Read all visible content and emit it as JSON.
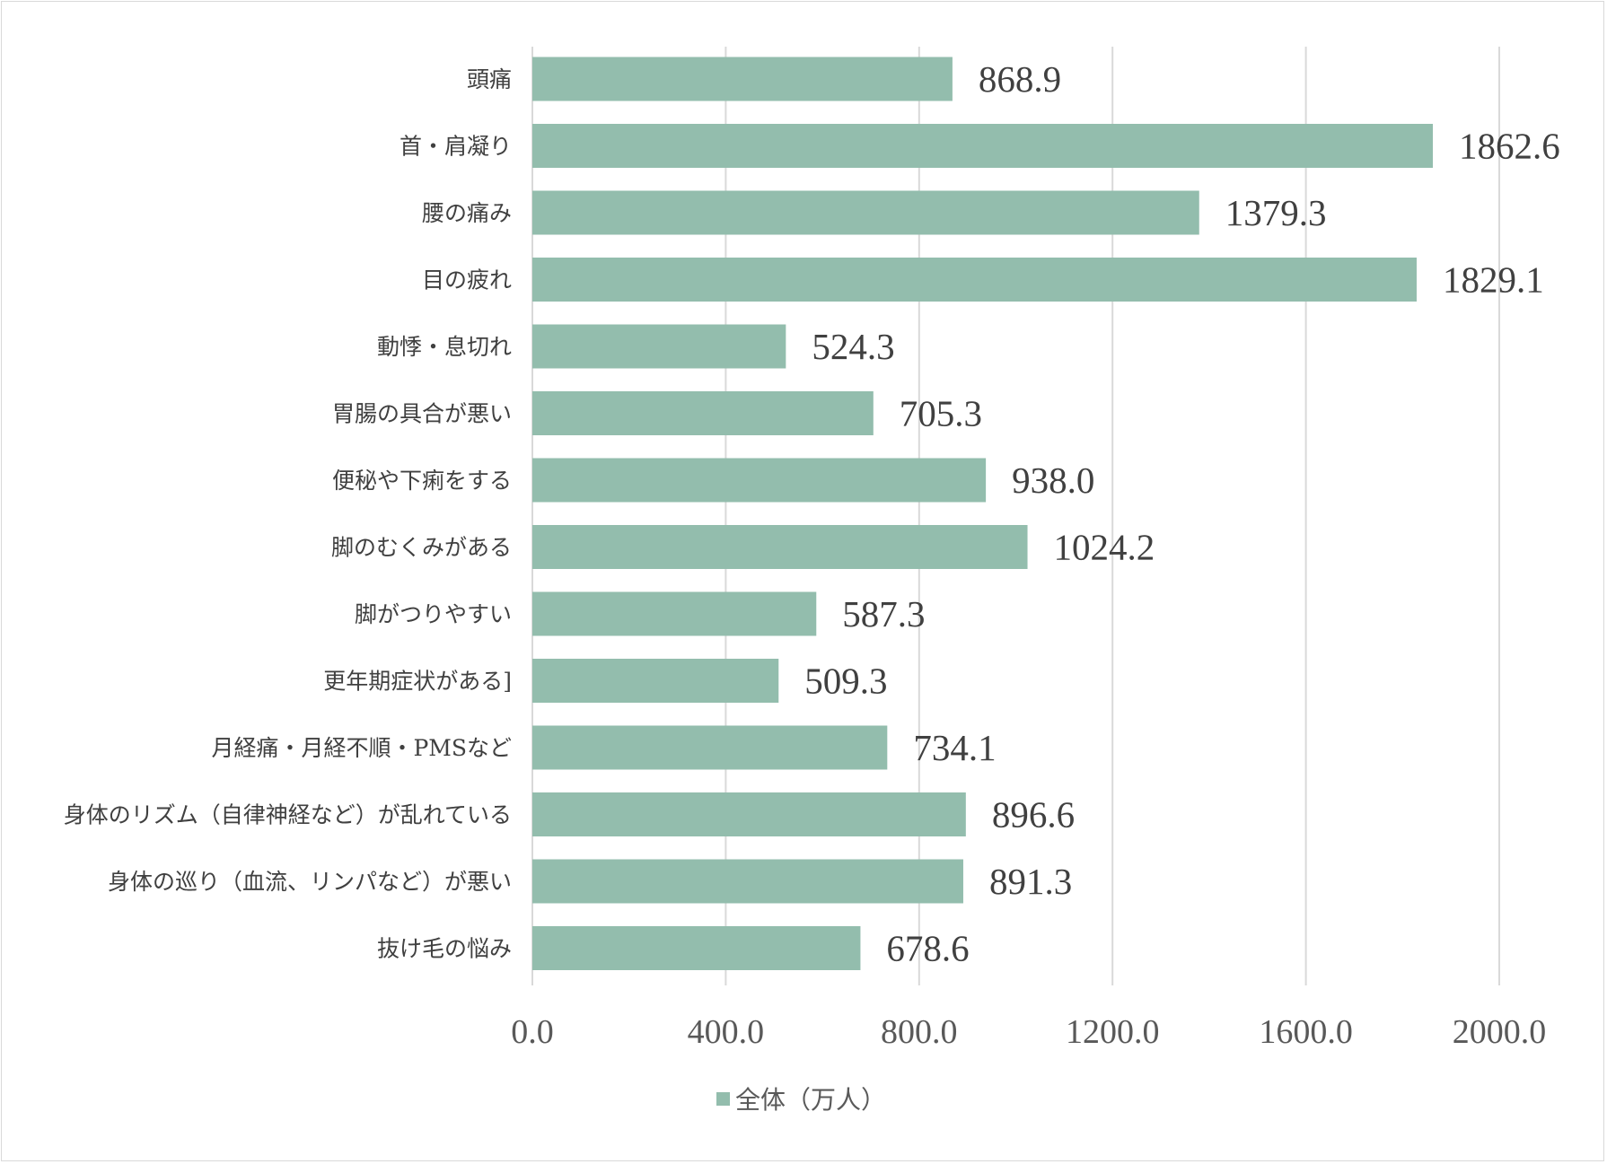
{
  "chart_data": {
    "type": "bar",
    "orientation": "horizontal",
    "categories": [
      "頭痛",
      "首・肩凝り",
      "腰の痛み",
      "目の疲れ",
      "動悸・息切れ",
      "胃腸の具合が悪い",
      "便秘や下痢をする",
      "脚のむくみがある",
      "脚がつりやすい",
      "更年期症状がある]",
      "月経痛・月経不順・PMSなど",
      "身体のリズム（自律神経など）が乱れている",
      "身体の巡り（血流、リンパなど）が悪い",
      "抜け毛の悩み"
    ],
    "series": [
      {
        "name": "全体（万人）",
        "values": [
          868.9,
          1862.6,
          1379.3,
          1829.1,
          524.3,
          705.3,
          938.0,
          1024.2,
          587.3,
          509.3,
          734.1,
          896.6,
          891.3,
          678.6
        ],
        "labels": [
          "868.9",
          "1862.6",
          "1379.3",
          "1829.1",
          "524.3",
          "705.3",
          "938.0",
          "1024.2",
          "587.3",
          "509.3",
          "734.1",
          "896.6",
          "891.3",
          "678.6"
        ],
        "color": "#93bdad"
      }
    ],
    "xlim": [
      0,
      2000
    ],
    "ticks": [
      0,
      400,
      800,
      1200,
      1600,
      2000
    ],
    "tick_labels": [
      "0.0",
      "400.0",
      "800.0",
      "1200.0",
      "1600.0",
      "2000.0"
    ],
    "grid": true,
    "legend": "bottom",
    "title": "",
    "xlabel": "",
    "ylabel": ""
  }
}
